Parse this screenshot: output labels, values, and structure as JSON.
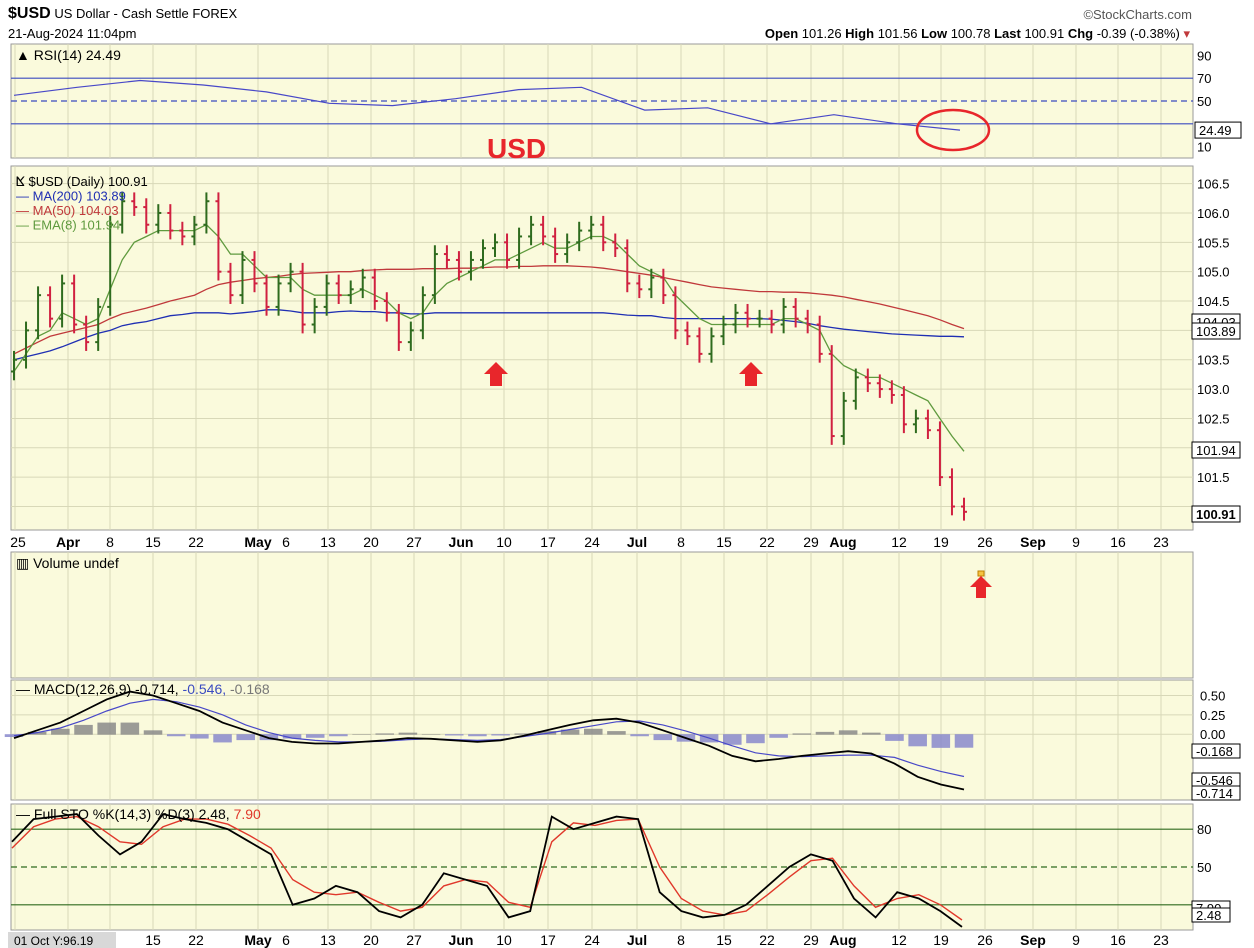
{
  "header": {
    "symbol": "$USD",
    "name": "US Dollar - Cash Settle",
    "exchange": "FOREX",
    "watermark": "©StockCharts.com",
    "datetime": "21-Aug-2024 11:04pm",
    "open_label": "Open",
    "open": "101.26",
    "high_label": "High",
    "high": "101.56",
    "low_label": "Low",
    "low": "100.78",
    "last_label": "Last",
    "last": "100.91",
    "chg_label": "Chg",
    "chg": "-0.39 (-0.38%)",
    "chg_arrow": "▾"
  },
  "annotation": {
    "text": "USD",
    "color": "#e8262b"
  },
  "colors": {
    "panel_bg": "#fafadc",
    "grid": "#d8d8b8",
    "up_bar": "#2e6b1e",
    "down_bar": "#d02040",
    "ma200": "#1f2fb3",
    "ma50": "#c0393b",
    "ema8": "#5f9a3e",
    "arrow": "#e8262b",
    "rsi_line": "#4848c8",
    "macd_line": "#000000",
    "signal_line": "#4848c8",
    "histogram": "#8a8a8a"
  },
  "chart_data": [
    {
      "type": "line",
      "panel": "rsi",
      "legend": "RSI(14) 24.49",
      "ylim": [
        0,
        100
      ],
      "yticks": [
        90,
        70,
        50,
        10
      ],
      "levels": [
        70,
        50,
        30
      ],
      "last_label": "24.49",
      "x": [
        "2024-03-25",
        "2024-04-08",
        "2024-04-15",
        "2024-04-22",
        "2024-05-06",
        "2024-05-20",
        "2024-06-03",
        "2024-06-10",
        "2024-06-24",
        "2024-07-01",
        "2024-07-15",
        "2024-07-29",
        "2024-08-05",
        "2024-08-12",
        "2024-08-19",
        "2024-08-21"
      ],
      "values": [
        55,
        62,
        68,
        64,
        58,
        48,
        46,
        52,
        60,
        62,
        42,
        44,
        30,
        38,
        30,
        24.49
      ],
      "circle_annotation": true
    },
    {
      "type": "ohlc",
      "panel": "price",
      "legend": [
        "$USD (Daily) 100.91",
        "MA(200) 103.89",
        "MA(50) 104.03",
        "EMA(8) 101.94"
      ],
      "series_names": [
        "$USD",
        "MA(200)",
        "MA(50)",
        "EMA(8)"
      ],
      "ylim": [
        100.6,
        106.8
      ],
      "yticks": [
        106.5,
        106.0,
        105.5,
        105.0,
        104.5,
        104.0,
        103.5,
        103.0,
        102.5,
        102.0,
        101.5,
        101.0
      ],
      "ytick_labels": [
        "106.5",
        "106.0",
        "105.5",
        "105.0",
        "104.5",
        "",
        "103.5",
        "103.0",
        "102.5",
        "",
        "101.5",
        ""
      ],
      "right_labels": [
        {
          "value": 104.03,
          "text": "104.03"
        },
        {
          "value": 103.89,
          "text": "103.89"
        },
        {
          "value": 101.94,
          "text": "101.94"
        },
        {
          "value": 100.91,
          "text": "100.91"
        }
      ],
      "x_tick_labels": [
        "25",
        "Apr",
        "8",
        "15",
        "22",
        "May",
        "6",
        "13",
        "20",
        "27",
        "Jun",
        "10",
        "17",
        "24",
        "Jul",
        "8",
        "15",
        "22",
        "29",
        "Aug",
        "12",
        "19",
        "26",
        "Sep",
        "9",
        "16",
        "23"
      ],
      "closes": [
        103.5,
        104.0,
        104.6,
        104.2,
        104.8,
        104.1,
        103.8,
        104.4,
        105.8,
        106.2,
        106.1,
        105.8,
        106.0,
        105.7,
        105.6,
        105.8,
        106.2,
        105.0,
        104.6,
        105.2,
        104.8,
        104.4,
        104.8,
        105.0,
        104.1,
        104.4,
        104.8,
        104.6,
        104.7,
        104.9,
        104.5,
        104.3,
        103.8,
        104.0,
        104.6,
        105.3,
        105.2,
        105.0,
        105.2,
        105.4,
        105.5,
        105.2,
        105.6,
        105.8,
        105.6,
        105.3,
        105.5,
        105.7,
        105.8,
        105.5,
        105.4,
        104.8,
        104.7,
        104.9,
        104.6,
        104.0,
        103.9,
        103.6,
        103.9,
        104.1,
        104.3,
        104.2,
        104.2,
        104.1,
        104.4,
        104.2,
        104.1,
        103.6,
        102.2,
        102.8,
        103.2,
        103.1,
        103.0,
        102.9,
        102.4,
        102.5,
        102.3,
        101.5,
        101.0,
        100.91
      ],
      "ma200": [
        103.5,
        103.55,
        103.6,
        103.65,
        103.72,
        103.8,
        103.88,
        103.95,
        104.0,
        104.08,
        104.12,
        104.15,
        104.2,
        104.25,
        104.27,
        104.3,
        104.3,
        104.3,
        104.28,
        104.3,
        104.32,
        104.35,
        104.35,
        104.33,
        104.3,
        104.3,
        104.3,
        104.32,
        104.33,
        104.32,
        104.32,
        104.3,
        104.3,
        104.28,
        104.28,
        104.3,
        104.3,
        104.3,
        104.3,
        104.3,
        104.3,
        104.3,
        104.3,
        104.3,
        104.3,
        104.3,
        104.3,
        104.3,
        104.3,
        104.3,
        104.28,
        104.26,
        104.25,
        104.25,
        104.22,
        104.2,
        104.2,
        104.2,
        104.2,
        104.2,
        104.2,
        104.2,
        104.2,
        104.19,
        104.17,
        104.15,
        104.12,
        104.08,
        104.05,
        104.02,
        104.0,
        103.98,
        103.96,
        103.94,
        103.93,
        103.92,
        103.91,
        103.9,
        103.9,
        103.89
      ],
      "ma50": [
        103.6,
        103.7,
        103.8,
        103.9,
        103.95,
        104.0,
        104.05,
        104.1,
        104.2,
        104.28,
        104.33,
        104.38,
        104.44,
        104.5,
        104.55,
        104.6,
        104.7,
        104.78,
        104.82,
        104.85,
        104.88,
        104.9,
        104.92,
        104.95,
        104.97,
        104.98,
        104.99,
        105.0,
        105.0,
        105.02,
        105.03,
        105.04,
        105.04,
        105.04,
        105.05,
        105.05,
        105.05,
        105.06,
        105.06,
        105.07,
        105.08,
        105.08,
        105.09,
        105.09,
        105.1,
        105.1,
        105.1,
        105.09,
        105.08,
        105.06,
        105.03,
        105.0,
        104.97,
        104.94,
        104.9,
        104.86,
        104.82,
        104.78,
        104.74,
        104.72,
        104.7,
        104.68,
        104.66,
        104.66,
        104.65,
        104.65,
        104.64,
        104.62,
        104.6,
        104.57,
        104.53,
        104.49,
        104.45,
        104.4,
        104.35,
        104.3,
        104.25,
        104.18,
        104.1,
        104.03
      ],
      "ema8": [
        103.3,
        103.6,
        103.9,
        104.0,
        104.3,
        104.2,
        104.1,
        104.2,
        104.7,
        105.2,
        105.5,
        105.6,
        105.7,
        105.7,
        105.7,
        105.7,
        105.8,
        105.6,
        105.3,
        105.3,
        105.1,
        104.9,
        104.9,
        104.9,
        104.7,
        104.6,
        104.6,
        104.6,
        104.6,
        104.7,
        104.6,
        104.5,
        104.3,
        104.2,
        104.3,
        104.6,
        104.8,
        104.9,
        105.0,
        105.1,
        105.2,
        105.2,
        105.3,
        105.4,
        105.5,
        105.4,
        105.4,
        105.5,
        105.6,
        105.6,
        105.5,
        105.3,
        105.1,
        105.0,
        104.9,
        104.6,
        104.4,
        104.2,
        104.1,
        104.1,
        104.1,
        104.1,
        104.1,
        104.1,
        104.2,
        104.2,
        104.1,
        104.0,
        103.6,
        103.4,
        103.3,
        103.2,
        103.2,
        103.1,
        103.0,
        102.9,
        102.8,
        102.5,
        102.2,
        101.94
      ],
      "up_arrows": [
        "2024-06-06",
        "2024-07-18"
      ]
    },
    {
      "type": "bar",
      "panel": "volume",
      "legend": "Volume undef",
      "values": []
    },
    {
      "type": "line",
      "panel": "macd",
      "legend_label": "MACD(12,26,9)",
      "legend_values": [
        "-0.714",
        "-0.546",
        "-0.168"
      ],
      "ylim": [
        -0.85,
        0.7
      ],
      "yticks": [
        0.5,
        0.25,
        0.0
      ],
      "ytick_labels": [
        "0.50",
        "0.25",
        "0.00"
      ],
      "right_labels": [
        {
          "value": -0.168,
          "text": "-0.168"
        },
        {
          "value": -0.546,
          "text": "-0.546"
        },
        {
          "value": -0.714,
          "text": "-0.714"
        }
      ],
      "macd": [
        -0.05,
        0.05,
        0.15,
        0.3,
        0.45,
        0.55,
        0.5,
        0.4,
        0.3,
        0.15,
        0.05,
        -0.05,
        -0.1,
        -0.12,
        -0.12,
        -0.1,
        -0.08,
        -0.05,
        -0.06,
        -0.08,
        -0.1,
        -0.08,
        -0.02,
        0.05,
        0.12,
        0.18,
        0.2,
        0.15,
        0.05,
        -0.05,
        -0.15,
        -0.28,
        -0.35,
        -0.32,
        -0.28,
        -0.25,
        -0.22,
        -0.25,
        -0.38,
        -0.55,
        -0.65,
        -0.714
      ],
      "signal": [
        -0.02,
        0.02,
        0.08,
        0.18,
        0.3,
        0.4,
        0.45,
        0.42,
        0.35,
        0.25,
        0.12,
        0.02,
        -0.05,
        -0.08,
        -0.1,
        -0.1,
        -0.09,
        -0.07,
        -0.06,
        -0.07,
        -0.08,
        -0.07,
        -0.03,
        0.01,
        0.06,
        0.11,
        0.16,
        0.17,
        0.12,
        0.04,
        -0.05,
        -0.15,
        -0.24,
        -0.28,
        -0.29,
        -0.28,
        -0.27,
        -0.27,
        -0.3,
        -0.4,
        -0.48,
        -0.546
      ],
      "histogram": [
        -0.03,
        0.03,
        0.07,
        0.12,
        0.15,
        0.15,
        0.05,
        -0.02,
        -0.05,
        -0.1,
        -0.07,
        -0.07,
        -0.05,
        -0.04,
        -0.02,
        0.0,
        0.01,
        0.02,
        0.0,
        -0.01,
        -0.02,
        -0.01,
        0.01,
        0.04,
        0.06,
        0.07,
        0.04,
        -0.02,
        -0.07,
        -0.09,
        -0.1,
        -0.13,
        -0.11,
        -0.04,
        0.01,
        0.03,
        0.05,
        0.02,
        -0.08,
        -0.15,
        -0.17,
        -0.168
      ]
    },
    {
      "type": "line",
      "panel": "stochastic",
      "legend_label": "Full STO %K(14,3) %D(3)",
      "legend_values": [
        "2.48",
        "7.90"
      ],
      "ylim": [
        0,
        100
      ],
      "yticks": [
        80,
        50,
        20
      ],
      "levels": [
        80,
        50,
        20
      ],
      "right_labels": [
        {
          "value": 7.9,
          "text": "7.90"
        },
        {
          "value": 2.48,
          "text": "2.48"
        }
      ],
      "k": [
        70,
        88,
        90,
        92,
        75,
        60,
        70,
        92,
        88,
        85,
        80,
        70,
        60,
        20,
        25,
        35,
        30,
        15,
        10,
        20,
        45,
        40,
        35,
        10,
        15,
        90,
        80,
        85,
        90,
        88,
        30,
        15,
        10,
        12,
        20,
        35,
        50,
        60,
        55,
        25,
        10,
        30,
        25,
        15,
        2.48
      ],
      "d": [
        65,
        82,
        88,
        90,
        82,
        70,
        68,
        82,
        88,
        88,
        84,
        75,
        65,
        40,
        30,
        28,
        30,
        22,
        15,
        18,
        35,
        40,
        38,
        22,
        18,
        70,
        85,
        83,
        87,
        88,
        50,
        25,
        15,
        12,
        15,
        28,
        42,
        55,
        57,
        35,
        18,
        25,
        28,
        20,
        7.9
      ]
    }
  ],
  "bottom_axis": {
    "first_label": "01 Oct Y:96.19",
    "labels": [
      "15",
      "22",
      "May",
      "6",
      "13",
      "20",
      "27",
      "Jun",
      "10",
      "17",
      "24",
      "Jul",
      "8",
      "15",
      "22",
      "29",
      "Aug",
      "12",
      "19",
      "26",
      "Sep",
      "9",
      "16",
      "23"
    ]
  }
}
